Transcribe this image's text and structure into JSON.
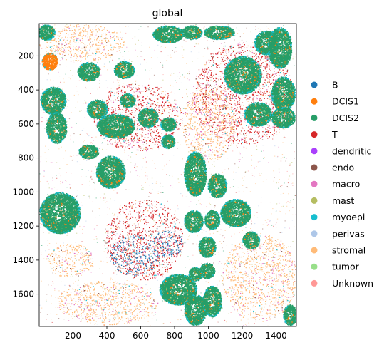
{
  "chart_data": {
    "type": "scatter",
    "title": "global",
    "xlabel": "",
    "ylabel": "",
    "xlim": [
      0,
      1520
    ],
    "ylim": [
      1790,
      10
    ],
    "y_inverted": true,
    "grid": false,
    "legend_position": "right",
    "x_ticks": [
      200,
      400,
      600,
      800,
      1000,
      1200,
      1400
    ],
    "y_ticks": [
      200,
      400,
      600,
      800,
      1000,
      1200,
      1400,
      1600
    ],
    "categories": [
      {
        "name": "B",
        "color": "#1f77b4"
      },
      {
        "name": "DCIS1",
        "color": "#ff7f0e"
      },
      {
        "name": "DCIS2",
        "color": "#279e68"
      },
      {
        "name": "T",
        "color": "#d62728"
      },
      {
        "name": "dendritic",
        "color": "#aa40fc"
      },
      {
        "name": "endo",
        "color": "#8c564b"
      },
      {
        "name": "macro",
        "color": "#e377c2"
      },
      {
        "name": "mast",
        "color": "#b5bd61"
      },
      {
        "name": "myoepi",
        "color": "#17becf"
      },
      {
        "name": "perivas",
        "color": "#aec7e8"
      },
      {
        "name": "stromal",
        "color": "#ffbb78"
      },
      {
        "name": "tumor",
        "color": "#98df8a"
      },
      {
        "name": "Unknown",
        "color": "#ff9896"
      }
    ],
    "ducts": [
      {
        "cx": 120,
        "cy": 1120,
        "rx": 120,
        "ry": 120,
        "type": "DCIS2"
      },
      {
        "cx": 420,
        "cy": 880,
        "rx": 85,
        "ry": 95,
        "type": "DCIS2"
      },
      {
        "cx": 340,
        "cy": 510,
        "rx": 60,
        "ry": 55,
        "type": "DCIS2"
      },
      {
        "cx": 450,
        "cy": 610,
        "rx": 110,
        "ry": 70,
        "type": "DCIS2"
      },
      {
        "cx": 520,
        "cy": 460,
        "rx": 45,
        "ry": 40,
        "type": "DCIS2"
      },
      {
        "cx": 640,
        "cy": 560,
        "rx": 60,
        "ry": 55,
        "type": "DCIS2"
      },
      {
        "cx": 760,
        "cy": 600,
        "rx": 45,
        "ry": 40,
        "type": "DCIS2"
      },
      {
        "cx": 760,
        "cy": 700,
        "rx": 40,
        "ry": 40,
        "type": "DCIS2"
      },
      {
        "cx": 920,
        "cy": 890,
        "rx": 65,
        "ry": 130,
        "type": "DCIS2"
      },
      {
        "cx": 1050,
        "cy": 960,
        "rx": 55,
        "ry": 70,
        "type": "DCIS2"
      },
      {
        "cx": 910,
        "cy": 1170,
        "rx": 55,
        "ry": 65,
        "type": "DCIS2"
      },
      {
        "cx": 1020,
        "cy": 1160,
        "rx": 45,
        "ry": 55,
        "type": "DCIS2"
      },
      {
        "cx": 1160,
        "cy": 1120,
        "rx": 90,
        "ry": 80,
        "type": "DCIS2"
      },
      {
        "cx": 1250,
        "cy": 1280,
        "rx": 50,
        "ry": 50,
        "type": "DCIS2"
      },
      {
        "cx": 990,
        "cy": 1320,
        "rx": 50,
        "ry": 60,
        "type": "DCIS2"
      },
      {
        "cx": 990,
        "cy": 1460,
        "rx": 45,
        "ry": 45,
        "type": "DCIS2"
      },
      {
        "cx": 820,
        "cy": 1570,
        "rx": 110,
        "ry": 90,
        "type": "DCIS2"
      },
      {
        "cx": 920,
        "cy": 1480,
        "rx": 40,
        "ry": 40,
        "type": "DCIS2"
      },
      {
        "cx": 920,
        "cy": 1690,
        "rx": 65,
        "ry": 90,
        "type": "DCIS2"
      },
      {
        "cx": 1020,
        "cy": 1640,
        "rx": 55,
        "ry": 90,
        "type": "DCIS2"
      },
      {
        "cx": 290,
        "cy": 290,
        "rx": 65,
        "ry": 55,
        "type": "DCIS2"
      },
      {
        "cx": 500,
        "cy": 280,
        "rx": 60,
        "ry": 50,
        "type": "DCIS2"
      },
      {
        "cx": 80,
        "cy": 460,
        "rx": 75,
        "ry": 80,
        "type": "DCIS2"
      },
      {
        "cx": 100,
        "cy": 620,
        "rx": 60,
        "ry": 90,
        "type": "DCIS2"
      },
      {
        "cx": 60,
        "cy": 230,
        "rx": 45,
        "ry": 50,
        "type": "DCIS1"
      },
      {
        "cx": 40,
        "cy": 60,
        "rx": 50,
        "ry": 45,
        "type": "DCIS2"
      },
      {
        "cx": 290,
        "cy": 760,
        "rx": 60,
        "ry": 40,
        "type": "DCIS2"
      },
      {
        "cx": 1340,
        "cy": 120,
        "rx": 70,
        "ry": 70,
        "type": "DCIS2"
      },
      {
        "cx": 1420,
        "cy": 150,
        "rx": 70,
        "ry": 120,
        "type": "DCIS2"
      },
      {
        "cx": 1200,
        "cy": 310,
        "rx": 110,
        "ry": 110,
        "type": "DCIS2"
      },
      {
        "cx": 1440,
        "cy": 420,
        "rx": 70,
        "ry": 100,
        "type": "DCIS2"
      },
      {
        "cx": 1290,
        "cy": 540,
        "rx": 80,
        "ry": 70,
        "type": "DCIS2"
      },
      {
        "cx": 1440,
        "cy": 560,
        "rx": 70,
        "ry": 60,
        "type": "DCIS2"
      },
      {
        "cx": 760,
        "cy": 70,
        "rx": 90,
        "ry": 50,
        "type": "DCIS2"
      },
      {
        "cx": 900,
        "cy": 60,
        "rx": 60,
        "ry": 40,
        "type": "DCIS2"
      },
      {
        "cx": 1060,
        "cy": 60,
        "rx": 90,
        "ry": 40,
        "type": "DCIS2"
      },
      {
        "cx": 1480,
        "cy": 1720,
        "rx": 40,
        "ry": 60,
        "type": "DCIS2"
      }
    ],
    "immune_regions": [
      {
        "cx": 620,
        "cy": 1280,
        "rx": 230,
        "ry": 240,
        "type": "T"
      },
      {
        "cx": 560,
        "cy": 1370,
        "rx": 150,
        "ry": 120,
        "type": "B"
      },
      {
        "cx": 760,
        "cy": 1300,
        "rx": 90,
        "ry": 80,
        "type": "B"
      },
      {
        "cx": 1200,
        "cy": 420,
        "rx": 300,
        "ry": 300,
        "type": "T"
      },
      {
        "cx": 580,
        "cy": 560,
        "rx": 260,
        "ry": 200,
        "type": "T"
      },
      {
        "cx": 180,
        "cy": 1400,
        "rx": 140,
        "ry": 100,
        "type": "stromal"
      },
      {
        "cx": 1000,
        "cy": 600,
        "rx": 160,
        "ry": 220,
        "type": "stromal"
      },
      {
        "cx": 400,
        "cy": 1650,
        "rx": 300,
        "ry": 130,
        "type": "stromal"
      },
      {
        "cx": 1300,
        "cy": 1500,
        "rx": 220,
        "ry": 260,
        "type": "stromal"
      },
      {
        "cx": 250,
        "cy": 120,
        "rx": 250,
        "ry": 110,
        "type": "stromal"
      }
    ]
  }
}
